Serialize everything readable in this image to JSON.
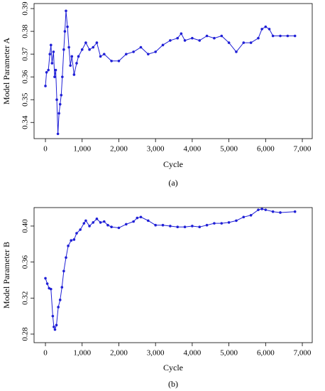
{
  "chart_data": [
    {
      "type": "line",
      "y_label": "Model Parameter A",
      "x_label": "Cycle",
      "caption": "(a)",
      "xlim": [
        -310,
        7270
      ],
      "ylim": [
        0.3329,
        0.3922
      ],
      "xticks": [
        0,
        {
          "value": 1000,
          "label": "1,000"
        },
        {
          "value": 2000,
          "label": "2,000"
        },
        {
          "value": 3000,
          "label": "3,000"
        },
        {
          "value": 4000,
          "label": "4,000"
        },
        {
          "value": 5000,
          "label": "5,000"
        },
        {
          "value": 6000,
          "label": "6,000"
        },
        {
          "value": 7000,
          "label": "7,000"
        }
      ],
      "yticks": [
        0.34,
        0.35,
        0.36,
        0.37,
        0.38,
        0.39
      ],
      "series": [
        {
          "color": "#1f1fd6",
          "x": [
            0,
            30,
            80,
            120,
            150,
            180,
            220,
            250,
            280,
            310,
            340,
            370,
            400,
            430,
            460,
            500,
            530,
            560,
            600,
            640,
            680,
            720,
            780,
            850,
            900,
            1000,
            1100,
            1200,
            1300,
            1400,
            1500,
            1600,
            1800,
            2000,
            2200,
            2400,
            2600,
            2800,
            3000,
            3200,
            3400,
            3600,
            3700,
            3800,
            4000,
            4200,
            4400,
            4600,
            4800,
            5000,
            5200,
            5400,
            5600,
            5800,
            5900,
            6000,
            6100,
            6200,
            6400,
            6600,
            6800
          ],
          "values": [
            0.356,
            0.362,
            0.363,
            0.37,
            0.374,
            0.366,
            0.371,
            0.36,
            0.363,
            0.35,
            0.335,
            0.344,
            0.348,
            0.352,
            0.36,
            0.372,
            0.38,
            0.389,
            0.382,
            0.373,
            0.365,
            0.369,
            0.361,
            0.366,
            0.369,
            0.372,
            0.375,
            0.372,
            0.373,
            0.375,
            0.369,
            0.37,
            0.367,
            0.367,
            0.37,
            0.371,
            0.373,
            0.37,
            0.371,
            0.374,
            0.376,
            0.377,
            0.379,
            0.376,
            0.377,
            0.376,
            0.378,
            0.377,
            0.378,
            0.375,
            0.371,
            0.375,
            0.375,
            0.377,
            0.381,
            0.382,
            0.381,
            0.378,
            0.378,
            0.378,
            0.378
          ]
        }
      ]
    },
    {
      "type": "line",
      "y_label": "Model Parameter B",
      "x_label": "Cycle",
      "caption": "(b)",
      "xlim": [
        -310,
        7270
      ],
      "ylim": [
        0.2705,
        0.4205
      ],
      "xticks": [
        0,
        {
          "value": 1000,
          "label": "1,000"
        },
        {
          "value": 2000,
          "label": "2,000"
        },
        {
          "value": 3000,
          "label": "3,000"
        },
        {
          "value": 4000,
          "label": "4,000"
        },
        {
          "value": 5000,
          "label": "5,000"
        },
        {
          "value": 6000,
          "label": "6,000"
        },
        {
          "value": 7000,
          "label": "7,000"
        }
      ],
      "yticks": [
        0.28,
        0.32,
        0.36,
        {
          "value": 0.4,
          "label": "0.40"
        }
      ],
      "series": [
        {
          "color": "#1f1fd6",
          "x": [
            0,
            50,
            100,
            150,
            200,
            230,
            260,
            300,
            350,
            400,
            450,
            500,
            560,
            620,
            700,
            780,
            850,
            950,
            1050,
            1100,
            1200,
            1300,
            1400,
            1500,
            1600,
            1700,
            1800,
            2000,
            2200,
            2400,
            2500,
            2600,
            2800,
            3000,
            3200,
            3400,
            3600,
            3800,
            4000,
            4200,
            4400,
            4600,
            4800,
            5000,
            5200,
            5400,
            5600,
            5800,
            5900,
            6000,
            6200,
            6400,
            6800
          ],
          "values": [
            0.342,
            0.336,
            0.331,
            0.33,
            0.3,
            0.288,
            0.285,
            0.29,
            0.31,
            0.318,
            0.332,
            0.35,
            0.365,
            0.378,
            0.384,
            0.385,
            0.392,
            0.396,
            0.403,
            0.406,
            0.4,
            0.404,
            0.408,
            0.404,
            0.405,
            0.401,
            0.399,
            0.398,
            0.402,
            0.405,
            0.409,
            0.41,
            0.406,
            0.401,
            0.401,
            0.4,
            0.399,
            0.399,
            0.4,
            0.399,
            0.401,
            0.403,
            0.403,
            0.404,
            0.406,
            0.41,
            0.412,
            0.418,
            0.419,
            0.418,
            0.416,
            0.415,
            0.416
          ]
        }
      ]
    }
  ]
}
